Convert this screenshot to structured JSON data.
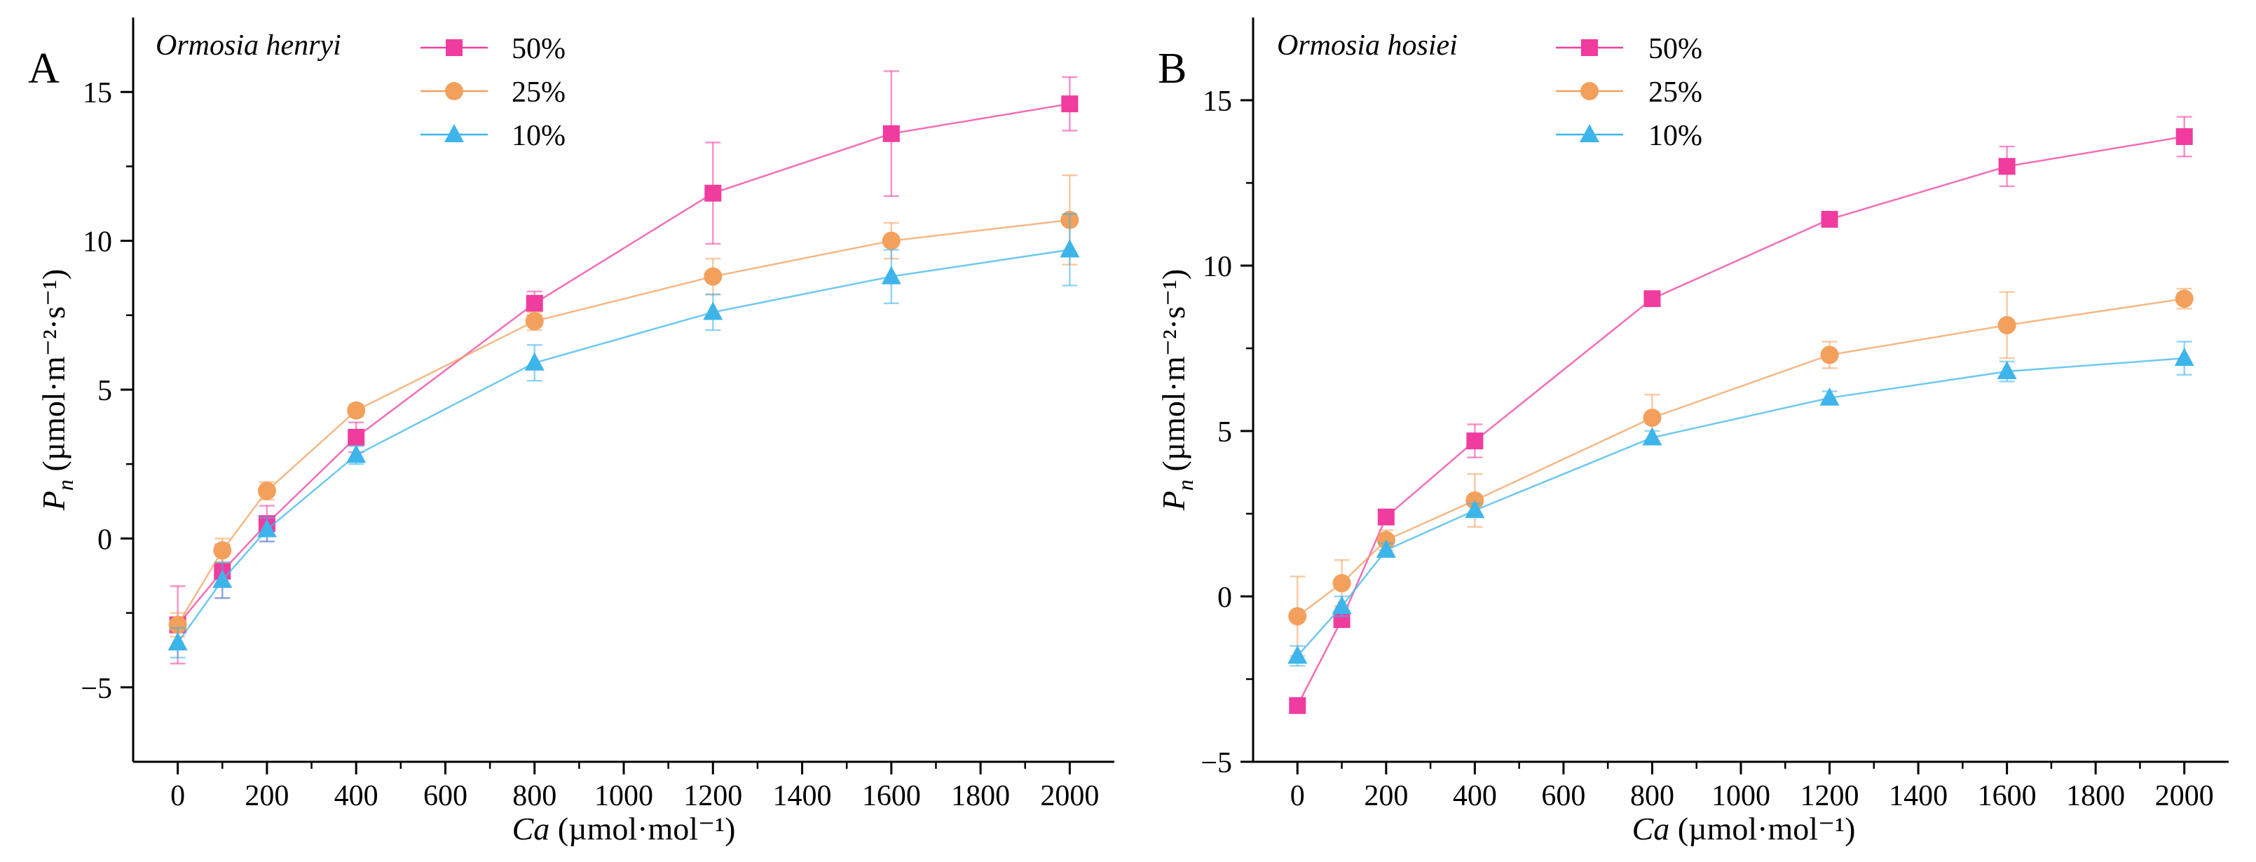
{
  "chart_data": [
    {
      "type": "line",
      "panel_label": "A",
      "title": "Ormosia henryi",
      "xlabel": {
        "italic": "Ca",
        "rest": " (µmol·mol⁻¹)"
      },
      "ylabel": {
        "main": "P",
        "sub": "n",
        "rest": " (µmol·m⁻²·s⁻¹)"
      },
      "xlim": [
        -100,
        2100
      ],
      "ylim": [
        -7.5,
        17.5
      ],
      "xticks": [
        0,
        200,
        400,
        600,
        800,
        1000,
        1200,
        1400,
        1600,
        1800,
        2000
      ],
      "yticks": [
        -5,
        0,
        5,
        10,
        15
      ],
      "x": [
        0,
        100,
        200,
        400,
        800,
        1200,
        1600,
        2000
      ],
      "legend_position": "top-center",
      "series": [
        {
          "name": "50%",
          "color": "#f03c9e",
          "marker": "square",
          "values": [
            -2.9,
            -1.1,
            0.5,
            3.4,
            7.9,
            11.6,
            13.6,
            14.6
          ],
          "errors": [
            1.3,
            0.9,
            0.6,
            0.5,
            0.4,
            1.7,
            2.1,
            0.9
          ]
        },
        {
          "name": "25%",
          "color": "#f2a05c",
          "marker": "circle",
          "values": [
            -2.9,
            -0.4,
            1.6,
            4.3,
            7.3,
            8.8,
            10.0,
            10.7
          ],
          "errors": [
            0.4,
            0.4,
            0.3,
            0.2,
            0.3,
            0.6,
            0.6,
            1.5
          ]
        },
        {
          "name": "10%",
          "color": "#3db5ea",
          "marker": "triangle",
          "values": [
            -3.5,
            -1.4,
            0.3,
            2.8,
            5.9,
            7.6,
            8.8,
            9.7
          ],
          "errors": [
            0.5,
            0.6,
            0.4,
            0.3,
            0.6,
            0.6,
            0.9,
            1.2
          ]
        }
      ]
    },
    {
      "type": "line",
      "panel_label": "B",
      "title": "Ormosia hosiei",
      "xlabel": {
        "italic": "Ca",
        "rest": " (µmol·mol⁻¹)"
      },
      "ylabel": {
        "main": "P",
        "sub": "n",
        "rest": " (µmol·m⁻²·s⁻¹)"
      },
      "xlim": [
        -100,
        2100
      ],
      "ylim": [
        -5,
        17.5
      ],
      "xticks": [
        0,
        200,
        400,
        600,
        800,
        1000,
        1200,
        1400,
        1600,
        1800,
        2000
      ],
      "yticks": [
        -5,
        0,
        5,
        10,
        15
      ],
      "x": [
        0,
        100,
        200,
        400,
        800,
        1200,
        1600,
        2000
      ],
      "legend_position": "top-center",
      "series": [
        {
          "name": "50%",
          "color": "#f03c9e",
          "marker": "square",
          "values": [
            -3.3,
            -0.7,
            2.4,
            4.7,
            9.0,
            11.4,
            13.0,
            13.9
          ],
          "errors": [
            0.2,
            0.2,
            0.2,
            0.5,
            0.2,
            0.2,
            0.6,
            0.6
          ]
        },
        {
          "name": "25%",
          "color": "#f2a05c",
          "marker": "circle",
          "values": [
            -0.6,
            0.4,
            1.7,
            2.9,
            5.4,
            7.3,
            8.2,
            9.0
          ],
          "errors": [
            1.2,
            0.7,
            0.3,
            0.8,
            0.7,
            0.4,
            1.0,
            0.3
          ]
        },
        {
          "name": "10%",
          "color": "#3db5ea",
          "marker": "triangle",
          "values": [
            -1.8,
            -0.3,
            1.4,
            2.6,
            4.8,
            6.0,
            6.8,
            7.2
          ],
          "errors": [
            0.3,
            0.3,
            0.2,
            0.2,
            0.2,
            0.2,
            0.3,
            0.5
          ]
        }
      ]
    }
  ]
}
